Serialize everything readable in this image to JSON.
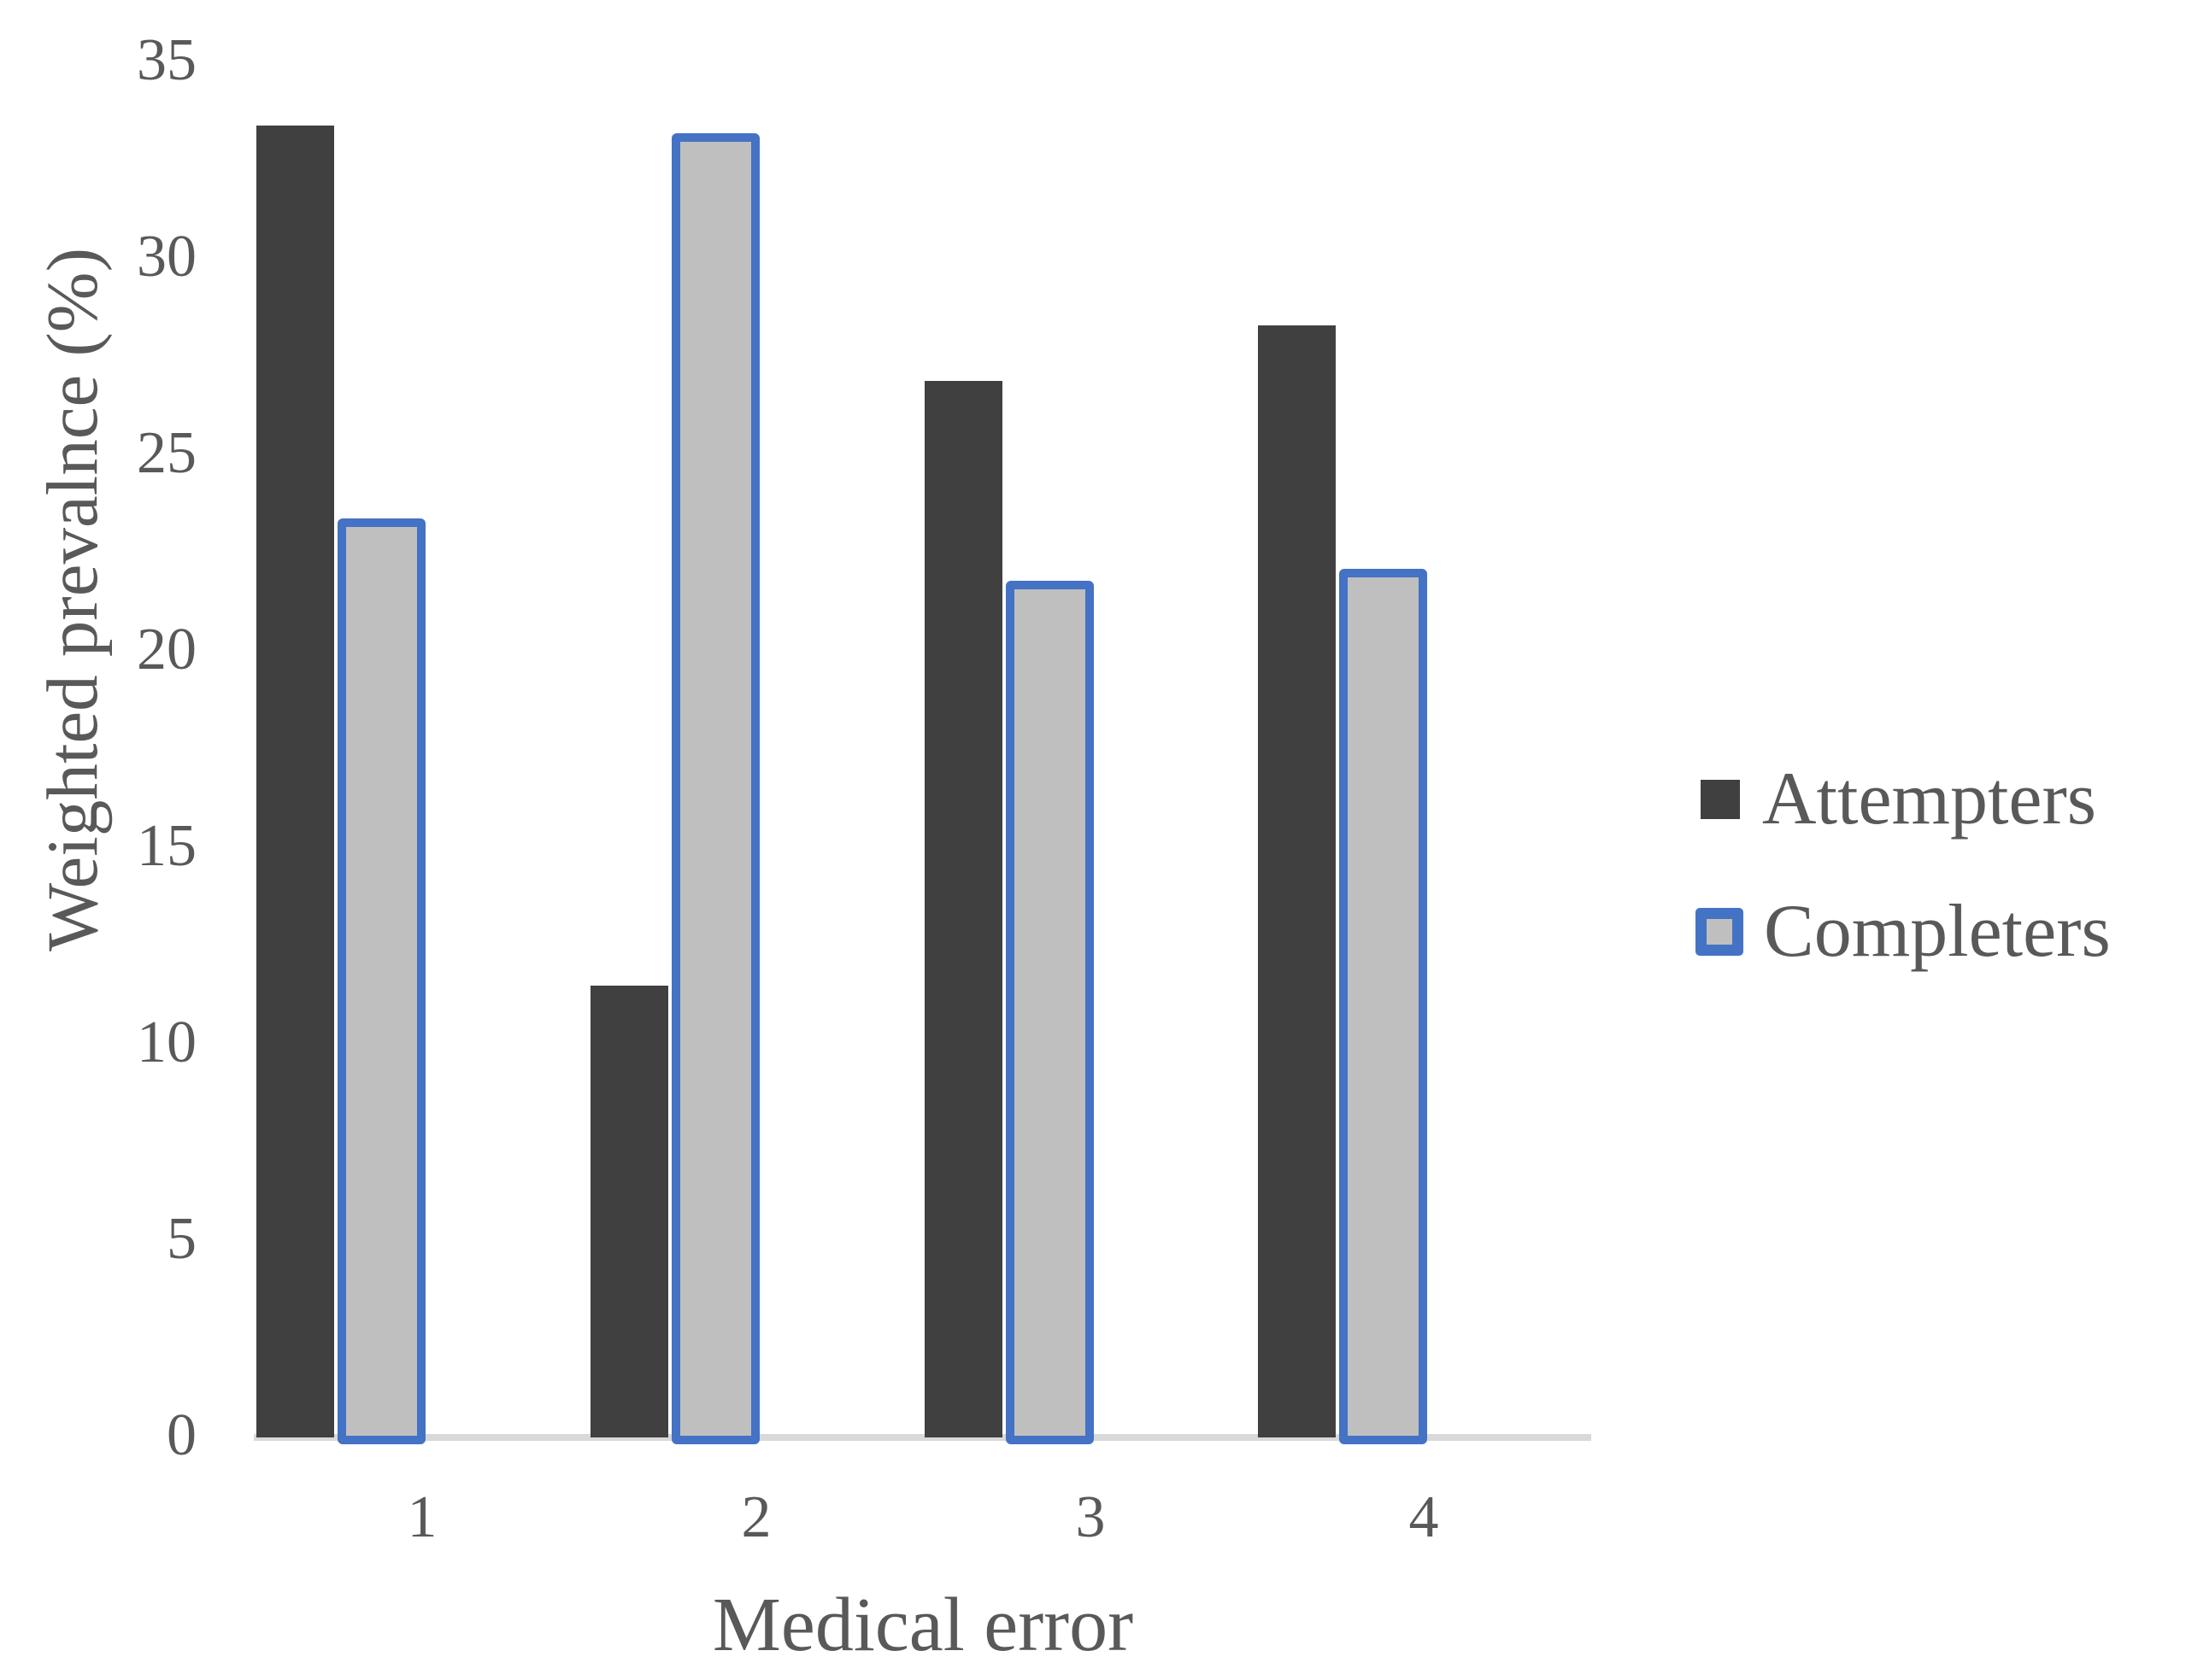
{
  "chart_data": {
    "type": "bar",
    "title": "",
    "categories": [
      "1",
      "2",
      "3",
      "4"
    ],
    "series": [
      {
        "name": "Attempters",
        "values": [
          33.4,
          11.5,
          26.9,
          28.3
        ],
        "fill": "#404040",
        "border": null
      },
      {
        "name": "Completers",
        "values": [
          23.4,
          33.2,
          21.8,
          22.1
        ],
        "fill": "#bfbfbf",
        "border": "#4472c4"
      }
    ],
    "xlabel": "Medical error",
    "ylabel": "Weighted prevalnce (%)",
    "ylim": [
      0,
      35
    ],
    "yticks": [
      "0",
      "5",
      "10",
      "15",
      "20",
      "25",
      "30",
      "35"
    ],
    "grid": false,
    "legend_position": "right",
    "axis_line_color": "#d9d9d9",
    "text_color": "#595959"
  }
}
